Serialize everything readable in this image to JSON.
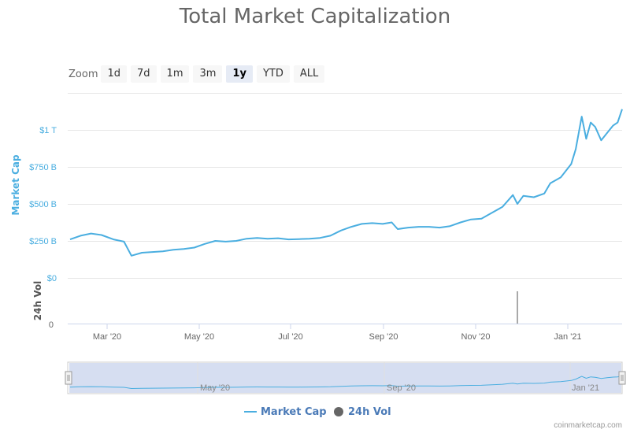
{
  "title": "Total Market Capitalization",
  "zoom": {
    "label": "Zoom",
    "buttons": [
      "1d",
      "7d",
      "1m",
      "3m",
      "1y",
      "YTD",
      "ALL"
    ],
    "active": "1y"
  },
  "credit": "coinmarketcap.com",
  "colors": {
    "market_cap": "#4aaee0",
    "volume": "#555555",
    "navigator_fill": "#cfd8ee"
  },
  "chart_data": {
    "type": "line",
    "x_ticks": [
      "Mar '20",
      "May '20",
      "Jul '20",
      "Sep '20",
      "Nov '20",
      "Jan '21"
    ],
    "navigator_ticks": [
      "May '20",
      "Sep '20",
      "Jan '21"
    ],
    "y_axis": {
      "label": "Market Cap",
      "ticks": [
        "$0",
        "$250 B",
        "$500 B",
        "$750 B",
        "$1 T"
      ],
      "range": [
        0,
        1250
      ]
    },
    "y2_axis": {
      "label": "24h Vol",
      "ticks": [
        "0"
      ]
    },
    "legend": {
      "position": "bottom-center",
      "items": [
        "Market Cap",
        "24h Vol"
      ]
    },
    "grid": true,
    "series": [
      {
        "name": "Market Cap",
        "unit": "B USD",
        "points": [
          [
            "2020-02-01",
            260
          ],
          [
            "2020-02-08",
            285
          ],
          [
            "2020-02-15",
            300
          ],
          [
            "2020-02-22",
            290
          ],
          [
            "2020-03-01",
            260
          ],
          [
            "2020-03-08",
            245
          ],
          [
            "2020-03-13",
            150
          ],
          [
            "2020-03-20",
            170
          ],
          [
            "2020-03-27",
            175
          ],
          [
            "2020-04-03",
            180
          ],
          [
            "2020-04-10",
            190
          ],
          [
            "2020-04-17",
            195
          ],
          [
            "2020-04-24",
            205
          ],
          [
            "2020-05-01",
            230
          ],
          [
            "2020-05-08",
            250
          ],
          [
            "2020-05-15",
            245
          ],
          [
            "2020-05-22",
            250
          ],
          [
            "2020-05-29",
            265
          ],
          [
            "2020-06-05",
            270
          ],
          [
            "2020-06-12",
            265
          ],
          [
            "2020-06-19",
            268
          ],
          [
            "2020-06-26",
            260
          ],
          [
            "2020-07-03",
            262
          ],
          [
            "2020-07-10",
            265
          ],
          [
            "2020-07-17",
            270
          ],
          [
            "2020-07-24",
            285
          ],
          [
            "2020-07-31",
            320
          ],
          [
            "2020-08-07",
            345
          ],
          [
            "2020-08-14",
            365
          ],
          [
            "2020-08-21",
            370
          ],
          [
            "2020-08-28",
            365
          ],
          [
            "2020-09-03",
            375
          ],
          [
            "2020-09-07",
            330
          ],
          [
            "2020-09-14",
            340
          ],
          [
            "2020-09-21",
            345
          ],
          [
            "2020-09-28",
            345
          ],
          [
            "2020-10-05",
            340
          ],
          [
            "2020-10-12",
            350
          ],
          [
            "2020-10-19",
            375
          ],
          [
            "2020-10-26",
            395
          ],
          [
            "2020-11-02",
            400
          ],
          [
            "2020-11-09",
            440
          ],
          [
            "2020-11-16",
            480
          ],
          [
            "2020-11-23",
            560
          ],
          [
            "2020-11-26",
            500
          ],
          [
            "2020-11-30",
            555
          ],
          [
            "2020-12-07",
            545
          ],
          [
            "2020-12-14",
            570
          ],
          [
            "2020-12-18",
            640
          ],
          [
            "2020-12-25",
            680
          ],
          [
            "2021-01-01",
            770
          ],
          [
            "2021-01-04",
            870
          ],
          [
            "2021-01-08",
            1090
          ],
          [
            "2021-01-11",
            940
          ],
          [
            "2021-01-14",
            1050
          ],
          [
            "2021-01-17",
            1020
          ],
          [
            "2021-01-21",
            930
          ],
          [
            "2021-01-25",
            980
          ],
          [
            "2021-01-29",
            1030
          ],
          [
            "2021-02-01",
            1050
          ],
          [
            "2021-02-04",
            1140
          ]
        ]
      },
      {
        "name": "24h Vol",
        "points": [
          [
            "2020-11-26",
            1
          ]
        ]
      }
    ]
  }
}
